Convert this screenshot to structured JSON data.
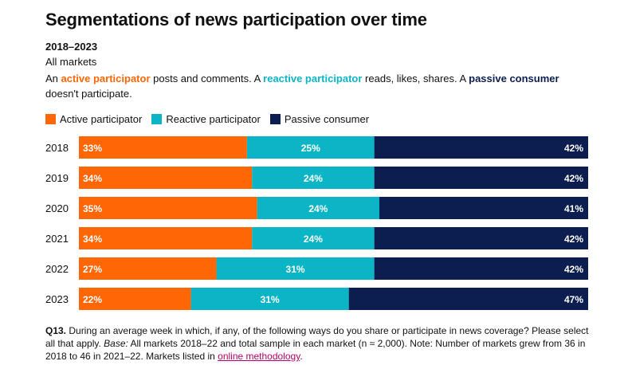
{
  "header": {
    "title": "Segmentations of news participation over time",
    "subtitle": "2018–2023",
    "scope": "All markets"
  },
  "description": {
    "p1": "An ",
    "active": "active participator",
    "p2": " posts and comments. A ",
    "reactive": "reactive participator",
    "p3": " reads, likes, shares. A ",
    "passive": "passive consumer",
    "p4": " doesn't participate."
  },
  "colors": {
    "active": "#fe6606",
    "reactive": "#0bb5c5",
    "passive": "#0b1e4f",
    "link": "#b5006b"
  },
  "chart_data": {
    "type": "bar",
    "orientation": "horizontal",
    "stacked": true,
    "categories": [
      "2018",
      "2019",
      "2020",
      "2021",
      "2022",
      "2023"
    ],
    "series": [
      {
        "name": "Active participator",
        "values": [
          33,
          34,
          35,
          34,
          27,
          22
        ]
      },
      {
        "name": "Reactive participator",
        "values": [
          25,
          24,
          24,
          24,
          31,
          31
        ]
      },
      {
        "name": "Passive consumer",
        "values": [
          42,
          42,
          41,
          42,
          42,
          47
        ]
      }
    ],
    "value_suffix": "%",
    "xlim": [
      0,
      100
    ],
    "legend": "top-left",
    "grid": false
  },
  "footnote": {
    "q": "Q13.",
    "text1": " During an average week in which, if any, of the following ways do you share or participate in news coverage? Please select all that apply. ",
    "base_label": "Base:",
    "text2": " All markets 2018–22 and total sample in each market (n ≈ 2,000). Note: Number of markets grew from 36 in 2018 to 46 in 2021–22. Markets listed in ",
    "link": "online methodology",
    "text3": "."
  }
}
